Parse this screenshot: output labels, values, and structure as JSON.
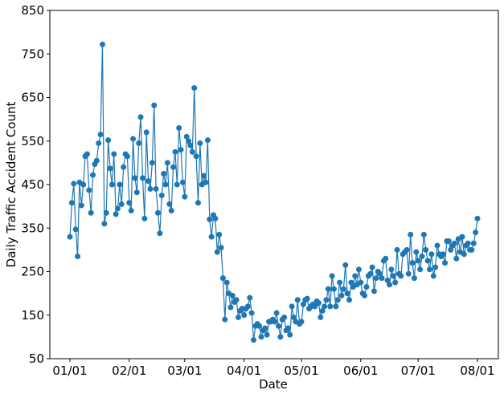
{
  "chart_data": {
    "type": "line",
    "xlabel": "Date",
    "ylabel": "Daily Traffic Accident Count",
    "color": "#1f77b4",
    "x": [
      "01/01",
      "01/02",
      "01/03",
      "01/04",
      "01/05",
      "01/06",
      "01/07",
      "01/08",
      "01/09",
      "01/10",
      "01/11",
      "01/12",
      "01/13",
      "01/14",
      "01/15",
      "01/16",
      "01/17",
      "01/18",
      "01/19",
      "01/20",
      "01/21",
      "01/22",
      "01/23",
      "01/24",
      "01/25",
      "01/26",
      "01/27",
      "01/28",
      "01/29",
      "01/30",
      "01/31",
      "02/01",
      "02/02",
      "02/03",
      "02/04",
      "02/05",
      "02/06",
      "02/07",
      "02/08",
      "02/09",
      "02/10",
      "02/11",
      "02/12",
      "02/13",
      "02/14",
      "02/15",
      "02/16",
      "02/17",
      "02/18",
      "02/19",
      "02/20",
      "02/21",
      "02/22",
      "02/23",
      "02/24",
      "02/25",
      "02/26",
      "02/27",
      "02/28",
      "02/29",
      "03/01",
      "03/02",
      "03/03",
      "03/04",
      "03/05",
      "03/06",
      "03/07",
      "03/08",
      "03/09",
      "03/10",
      "03/11",
      "03/12",
      "03/13",
      "03/14",
      "03/15",
      "03/16",
      "03/17",
      "03/18",
      "03/19",
      "03/20",
      "03/21",
      "03/22",
      "03/23",
      "03/24",
      "03/25",
      "03/26",
      "03/27",
      "03/28",
      "03/29",
      "03/30",
      "03/31",
      "04/01",
      "04/02",
      "04/03",
      "04/04",
      "04/05",
      "04/06",
      "04/07",
      "04/08",
      "04/09",
      "04/10",
      "04/11",
      "04/12",
      "04/13",
      "04/14",
      "04/15",
      "04/16",
      "04/17",
      "04/18",
      "04/19",
      "04/20",
      "04/21",
      "04/22",
      "04/23",
      "04/24",
      "04/25",
      "04/26",
      "04/27",
      "04/28",
      "04/29",
      "04/30",
      "05/01",
      "05/02",
      "05/03",
      "05/04",
      "05/05",
      "05/06",
      "05/07",
      "05/08",
      "05/09",
      "05/10",
      "05/11",
      "05/12",
      "05/13",
      "05/14",
      "05/15",
      "05/16",
      "05/17",
      "05/18",
      "05/19",
      "05/20",
      "05/21",
      "05/22",
      "05/23",
      "05/24",
      "05/25",
      "05/26",
      "05/27",
      "05/28",
      "05/29",
      "05/30",
      "05/31",
      "06/01",
      "06/02",
      "06/03",
      "06/04",
      "06/05",
      "06/06",
      "06/07",
      "06/08",
      "06/09",
      "06/10",
      "06/11",
      "06/12",
      "06/13",
      "06/14",
      "06/15",
      "06/16",
      "06/17",
      "06/18",
      "06/19",
      "06/20",
      "06/21",
      "06/22",
      "06/23",
      "06/24",
      "06/25",
      "06/26",
      "06/27",
      "06/28",
      "06/29",
      "06/30",
      "07/01",
      "07/02",
      "07/03",
      "07/04",
      "07/05",
      "07/06",
      "07/07",
      "07/08",
      "07/09",
      "07/10",
      "07/11",
      "07/12",
      "07/13",
      "07/14",
      "07/15",
      "07/16",
      "07/17",
      "07/18",
      "07/19",
      "07/20",
      "07/21",
      "07/22",
      "07/23",
      "07/24",
      "07/25",
      "07/26",
      "07/27",
      "07/28",
      "07/29",
      "07/30",
      "07/31",
      "08/01"
    ],
    "values": [
      330,
      408,
      452,
      347,
      285,
      455,
      402,
      450,
      515,
      520,
      437,
      385,
      472,
      497,
      505,
      545,
      565,
      772,
      360,
      385,
      552,
      487,
      450,
      520,
      382,
      395,
      450,
      405,
      490,
      520,
      515,
      408,
      390,
      555,
      465,
      432,
      545,
      605,
      465,
      372,
      570,
      458,
      440,
      500,
      632,
      440,
      385,
      338,
      425,
      475,
      450,
      500,
      405,
      390,
      490,
      525,
      450,
      580,
      530,
      455,
      422,
      560,
      550,
      540,
      525,
      672,
      515,
      408,
      545,
      450,
      470,
      455,
      552,
      370,
      330,
      380,
      372,
      295,
      335,
      305,
      235,
      140,
      225,
      200,
      168,
      195,
      180,
      185,
      145,
      160,
      165,
      150,
      165,
      170,
      190,
      155,
      93,
      125,
      130,
      125,
      100,
      115,
      120,
      105,
      135,
      135,
      140,
      135,
      155,
      125,
      100,
      140,
      145,
      115,
      120,
      105,
      170,
      145,
      135,
      185,
      130,
      135,
      175,
      185,
      188,
      165,
      170,
      175,
      170,
      182,
      178,
      145,
      160,
      170,
      185,
      210,
      170,
      240,
      210,
      170,
      185,
      225,
      195,
      210,
      265,
      200,
      185,
      225,
      215,
      240,
      220,
      255,
      225,
      200,
      195,
      215,
      240,
      245,
      260,
      205,
      235,
      250,
      245,
      235,
      275,
      280,
      230,
      220,
      255,
      240,
      225,
      300,
      245,
      240,
      290,
      295,
      300,
      245,
      335,
      270,
      235,
      295,
      275,
      255,
      285,
      335,
      300,
      275,
      255,
      290,
      240,
      260,
      310,
      290,
      285,
      290,
      270,
      320,
      320,
      300,
      310,
      315,
      280,
      325,
      295,
      330,
      290,
      310,
      315,
      300,
      300,
      315,
      340,
      372
    ],
    "xticks": [
      "01/01",
      "02/01",
      "03/01",
      "04/01",
      "05/01",
      "06/01",
      "07/01",
      "08/01"
    ],
    "ylim": [
      50,
      850
    ],
    "yticks": [
      50,
      150,
      250,
      350,
      450,
      550,
      650,
      750,
      850
    ]
  }
}
